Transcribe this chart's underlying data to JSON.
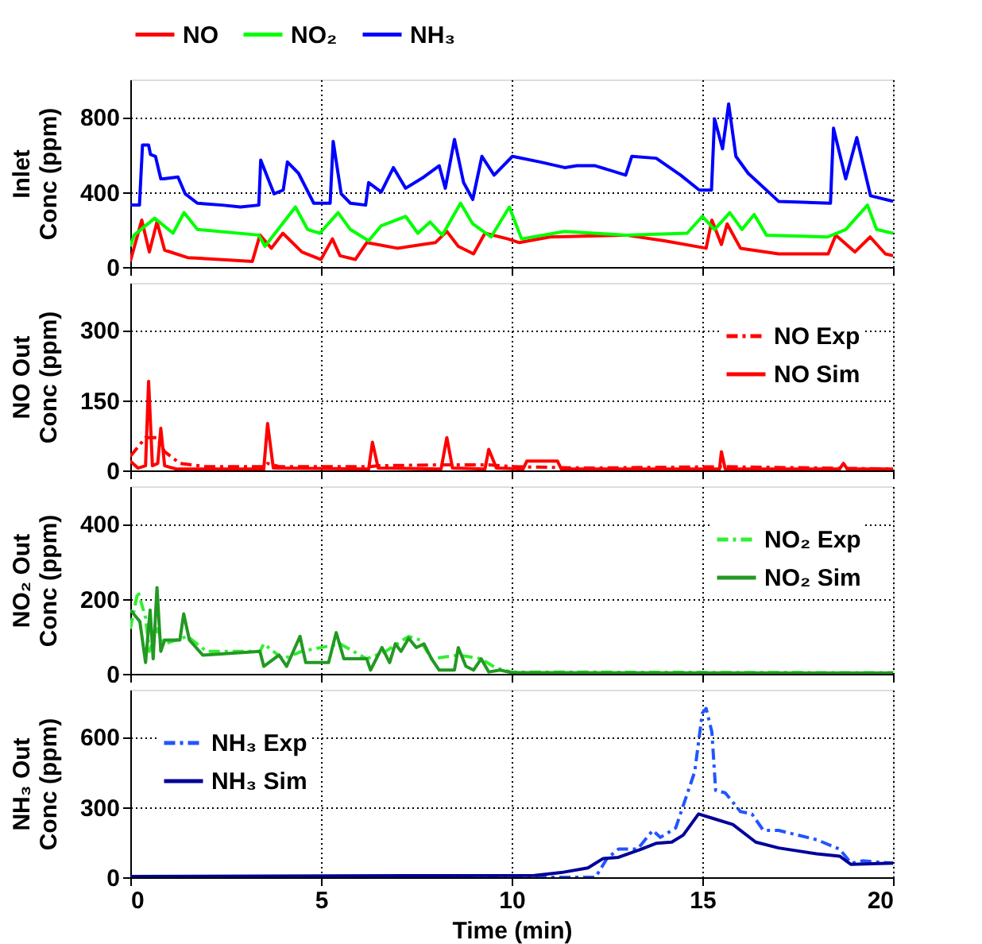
{
  "chart_data": [
    {
      "type": "line",
      "ylabel": "Inlet\nConc (ppm)",
      "xlim": [
        0,
        20
      ],
      "xticks": [
        0,
        5,
        10,
        15,
        20
      ],
      "ylim": [
        0,
        1000
      ],
      "yticks": [
        0,
        400,
        800
      ],
      "grid": true,
      "legend": "top",
      "tick_labels": "y",
      "series": [
        {
          "name": "NO",
          "color": "#ff0000",
          "line_style": "solid",
          "x": [
            0,
            0.3,
            0.5,
            0.7,
            0.9,
            1.5,
            3.2,
            3.4,
            3.7,
            4.0,
            4.5,
            5.0,
            5.3,
            5.5,
            5.9,
            6.2,
            7.0,
            8.0,
            8.3,
            8.6,
            9.0,
            9.3,
            9.9,
            10.2,
            11,
            13,
            14,
            15.1,
            15.25,
            15.5,
            15.65,
            16,
            17,
            18.3,
            18.5,
            19,
            19.4,
            19.8,
            20
          ],
          "values": [
            30,
            250,
            80,
            240,
            90,
            50,
            30,
            170,
            100,
            180,
            80,
            40,
            150,
            60,
            40,
            130,
            100,
            130,
            190,
            110,
            70,
            180,
            150,
            130,
            160,
            170,
            140,
            100,
            250,
            120,
            230,
            100,
            70,
            70,
            170,
            80,
            160,
            70,
            60
          ]
        },
        {
          "name": "NO₂",
          "color": "#00ff00",
          "line_style": "solid",
          "x": [
            0,
            0.1,
            0.64,
            1.12,
            1.41,
            1.76,
            3.37,
            3.53,
            4.33,
            4.65,
            4.97,
            5.45,
            5.77,
            6.25,
            6.58,
            7.22,
            7.54,
            7.86,
            8.18,
            8.66,
            8.98,
            9.46,
            9.94,
            10.26,
            11.39,
            12.99,
            14.6,
            15.0,
            15.32,
            15.72,
            16.04,
            16.36,
            16.68,
            18.28,
            18.76,
            19.33,
            19.57,
            20
          ],
          "values": [
            110,
            170,
            260,
            180,
            290,
            200,
            170,
            110,
            320,
            200,
            180,
            290,
            200,
            140,
            220,
            270,
            180,
            240,
            170,
            340,
            230,
            160,
            320,
            150,
            190,
            170,
            180,
            270,
            200,
            290,
            200,
            280,
            170,
            160,
            200,
            330,
            200,
            180
          ]
        },
        {
          "name": "NH₃",
          "color": "#0000ff",
          "line_style": "solid",
          "x": [
            0,
            0.24,
            0.32,
            0.48,
            0.53,
            0.66,
            0.8,
            0.88,
            1.25,
            1.44,
            1.76,
            2.41,
            2.89,
            3.37,
            3.42,
            3.77,
            4.01,
            4.12,
            4.41,
            4.81,
            5.24,
            5.32,
            5.53,
            5.77,
            6.17,
            6.25,
            6.58,
            6.9,
            7.22,
            7.7,
            8.1,
            8.26,
            8.5,
            8.74,
            8.98,
            9.22,
            9.54,
            10.02,
            10.75,
            11.39,
            11.71,
            12.19,
            12.99,
            13.15,
            13.79,
            14.43,
            14.92,
            15.24,
            15.32,
            15.53,
            15.69,
            15.88,
            16.2,
            17.0,
            18.36,
            18.44,
            18.76,
            19.05,
            19.41,
            20
          ],
          "values": [
            330,
            330,
            650,
            650,
            600,
            590,
            470,
            470,
            480,
            390,
            340,
            330,
            320,
            330,
            570,
            390,
            410,
            560,
            500,
            340,
            340,
            670,
            390,
            340,
            330,
            450,
            400,
            530,
            420,
            480,
            540,
            420,
            680,
            450,
            360,
            590,
            490,
            590,
            560,
            530,
            540,
            540,
            490,
            590,
            580,
            490,
            410,
            410,
            790,
            630,
            870,
            590,
            500,
            350,
            340,
            740,
            470,
            690,
            380,
            350
          ]
        }
      ]
    },
    {
      "type": "line",
      "ylabel": "NO Out\nConc (ppm)",
      "xlim": [
        0,
        20
      ],
      "xticks": [
        0,
        5,
        10,
        15,
        20
      ],
      "ylim": [
        0,
        400
      ],
      "yticks": [
        0,
        150,
        300
      ],
      "grid": true,
      "legend": "top right",
      "tick_labels": "y",
      "series": [
        {
          "name": "NO Exp",
          "color": "#ff0000",
          "line_style": "dashed",
          "x": [
            0,
            0.4,
            0.7,
            0.9,
            1.3,
            2,
            3.5,
            3.6,
            3.9,
            6.3,
            6.5,
            8.3,
            9.4,
            10,
            12,
            15.5,
            20
          ],
          "values": [
            30,
            70,
            70,
            40,
            15,
            8,
            8,
            15,
            8,
            8,
            10,
            12,
            12,
            8,
            5,
            8,
            3
          ]
        },
        {
          "name": "NO Sim",
          "color": "#ff0000",
          "line_style": "solid",
          "x": [
            0,
            0.2,
            0.4,
            0.48,
            0.58,
            0.72,
            0.8,
            0.9,
            1.2,
            3.5,
            3.6,
            3.75,
            6.25,
            6.35,
            6.5,
            8.15,
            8.3,
            8.45,
            9.3,
            9.4,
            9.6,
            10.3,
            10.4,
            11.2,
            11.3,
            15.45,
            15.5,
            15.6,
            18.6,
            18.7,
            18.8,
            20
          ],
          "values": [
            20,
            5,
            10,
            190,
            10,
            15,
            90,
            10,
            3,
            3,
            100,
            5,
            3,
            60,
            5,
            3,
            70,
            5,
            3,
            45,
            5,
            3,
            20,
            20,
            3,
            3,
            40,
            3,
            3,
            15,
            3,
            3
          ]
        }
      ]
    },
    {
      "type": "line",
      "ylabel": "NO₂ Out\nConc (ppm)",
      "xlim": [
        0,
        20
      ],
      "xticks": [
        0,
        5,
        10,
        15,
        20
      ],
      "ylim": [
        0,
        500
      ],
      "yticks": [
        0,
        200,
        400
      ],
      "grid": true,
      "legend": "top right",
      "tick_labels": "y",
      "series": [
        {
          "name": "NO₂ Exp",
          "color": "#33ee33",
          "line_style": "dashed",
          "x": [
            0,
            0.2,
            0.4,
            0.5,
            0.7,
            0.9,
            1.5,
            2,
            3.4,
            3.5,
            4,
            4.5,
            5.5,
            6.2,
            6.7,
            7.3,
            7.6,
            7.9,
            8.6,
            9.2,
            9.6,
            10,
            20
          ],
          "values": [
            120,
            220,
            150,
            60,
            120,
            80,
            100,
            60,
            60,
            80,
            40,
            60,
            80,
            40,
            60,
            100,
            90,
            40,
            50,
            40,
            15,
            5,
            3
          ]
        },
        {
          "name": "NO₂ Sim",
          "color": "#229922",
          "line_style": "solid",
          "x": [
            0,
            0.25,
            0.4,
            0.52,
            0.6,
            0.7,
            0.8,
            0.9,
            1.3,
            1.4,
            1.55,
            1.9,
            3.4,
            3.5,
            3.9,
            4.1,
            4.45,
            4.6,
            5.2,
            5.4,
            5.6,
            6.2,
            6.3,
            6.6,
            6.8,
            6.95,
            7.1,
            7.3,
            7.5,
            7.7,
            7.9,
            8.1,
            8.5,
            8.6,
            8.8,
            9.0,
            9.2,
            9.4,
            9.7,
            10,
            20
          ],
          "values": [
            170,
            140,
            30,
            170,
            40,
            230,
            60,
            90,
            90,
            160,
            90,
            50,
            60,
            20,
            50,
            20,
            100,
            30,
            30,
            110,
            40,
            40,
            10,
            70,
            30,
            80,
            60,
            95,
            70,
            80,
            40,
            10,
            10,
            70,
            20,
            10,
            40,
            5,
            10,
            3,
            2
          ]
        }
      ]
    },
    {
      "type": "line",
      "xlabel": "Time (min)",
      "ylabel": "NH₃ Out\nConc (ppm)",
      "xlim": [
        0,
        20
      ],
      "xticks": [
        0,
        5,
        10,
        15,
        20
      ],
      "ylim": [
        0,
        800
      ],
      "yticks": [
        0,
        300,
        600
      ],
      "grid": true,
      "legend": "top left",
      "series": [
        {
          "name": "NH₃ Exp",
          "color": "#2255ff",
          "line_style": "dashed",
          "x": [
            0,
            12.2,
            12.5,
            12.8,
            13.3,
            13.7,
            13.9,
            14.3,
            14.8,
            15.0,
            15.1,
            15.25,
            15.35,
            15.6,
            16,
            16.3,
            16.6,
            17,
            18,
            18.6,
            18.9,
            19.2,
            20
          ],
          "values": [
            0,
            0,
            80,
            120,
            120,
            200,
            170,
            210,
            450,
            700,
            720,
            620,
            370,
            360,
            280,
            270,
            200,
            200,
            160,
            120,
            60,
            70,
            60
          ]
        },
        {
          "name": "NH₃ Sim",
          "color": "#000099",
          "line_style": "solid",
          "x": [
            0,
            10.6,
            11.3,
            12,
            12.4,
            12.8,
            13.4,
            13.8,
            14.2,
            14.5,
            14.9,
            15.3,
            15.8,
            16.4,
            17,
            18,
            18.6,
            18.9,
            20
          ],
          "values": [
            3,
            8,
            20,
            40,
            80,
            85,
            120,
            145,
            150,
            180,
            270,
            250,
            225,
            150,
            125,
            100,
            90,
            55,
            60
          ]
        }
      ]
    }
  ]
}
